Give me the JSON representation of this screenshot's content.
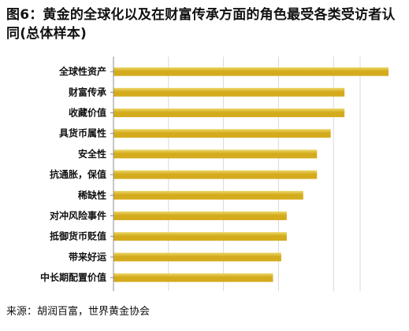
{
  "title": "图6：黄金的全球化以及在财富传承方面的角色最受各类受访者认同(总体样本)",
  "source": "来源：胡润百富，世界黄金协会",
  "colors": {
    "bar": "#d4ab1c",
    "bar_highlight": "#ecd86a",
    "grid": "#d9d9d9",
    "axis": "#8c8c8c"
  },
  "chart_data": {
    "type": "bar",
    "orientation": "horizontal",
    "title": "图6：黄金的全球化以及在财富传承方面的角色最受各类受访者认同(总体样本)",
    "categories": [
      "全球性资产",
      "财富传承",
      "收藏价值",
      "具货币属性",
      "安全性",
      "抗通胀，保值",
      "稀缺性",
      "对冲风险事件",
      "抵御货币贬值",
      "带来好运",
      "中长期配置价值"
    ],
    "values": [
      100,
      84,
      84,
      79,
      74,
      74,
      69,
      63,
      63,
      61,
      58
    ],
    "xlim": [
      0,
      100
    ],
    "grid": true
  }
}
